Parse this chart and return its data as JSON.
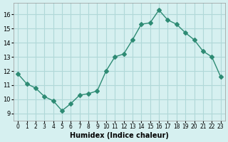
{
  "x": [
    0,
    1,
    2,
    3,
    4,
    5,
    6,
    7,
    8,
    9,
    10,
    11,
    12,
    13,
    14,
    15,
    16,
    17,
    18,
    19,
    20,
    21,
    22,
    23
  ],
  "y": [
    11.8,
    11.1,
    10.8,
    10.2,
    9.9,
    9.2,
    9.7,
    10.3,
    10.4,
    10.6,
    12.0,
    13.0,
    13.2,
    14.2,
    15.3,
    15.4,
    16.3,
    15.6,
    15.3,
    14.7,
    14.2,
    13.4,
    13.0,
    11.6
  ],
  "line_color": "#2e8b74",
  "marker": "D",
  "marker_size": 3,
  "bg_color": "#d6f0f0",
  "grid_color": "#b0d8d8",
  "xlabel": "Humidex (Indice chaleur)",
  "ylabel": "",
  "xlim": [
    -0.5,
    23.5
  ],
  "ylim": [
    8.5,
    16.8
  ],
  "yticks": [
    9,
    10,
    11,
    12,
    13,
    14,
    15,
    16
  ],
  "xtick_labels": [
    "0",
    "1",
    "2",
    "3",
    "4",
    "5",
    "6",
    "7",
    "8",
    "9",
    "10",
    "11",
    "12",
    "13",
    "14",
    "15",
    "16",
    "17",
    "18",
    "19",
    "20",
    "21",
    "22",
    "23"
  ]
}
